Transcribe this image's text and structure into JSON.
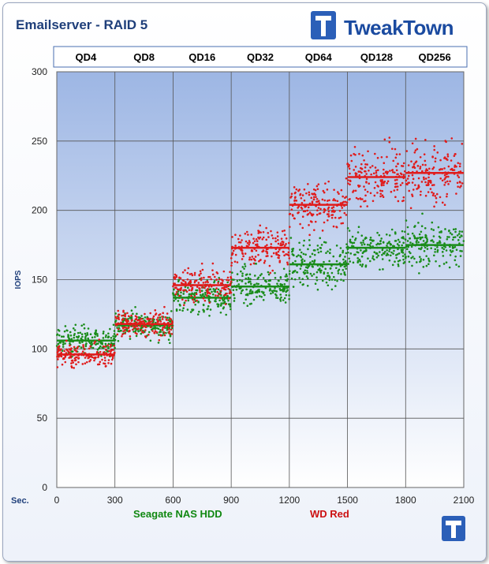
{
  "chart_data": {
    "type": "scatter",
    "title": "Emailserver  - RAID 5",
    "ylabel": "IOPS",
    "xlabel": "Sec.",
    "xlim": [
      0,
      2100
    ],
    "ylim": [
      0,
      300
    ],
    "xticks": [
      0,
      300,
      600,
      900,
      1200,
      1500,
      1800,
      2100
    ],
    "yticks": [
      0,
      50,
      100,
      150,
      200,
      250,
      300
    ],
    "grid": true,
    "legend_position": "bottom",
    "segments": [
      {
        "label": "QD4",
        "x_start": 0,
        "x_end": 300
      },
      {
        "label": "QD8",
        "x_start": 300,
        "x_end": 600
      },
      {
        "label": "QD16",
        "x_start": 600,
        "x_end": 900
      },
      {
        "label": "QD32",
        "x_start": 900,
        "x_end": 1200
      },
      {
        "label": "QD64",
        "x_start": 1200,
        "x_end": 1500
      },
      {
        "label": "QD128",
        "x_start": 1500,
        "x_end": 1800
      },
      {
        "label": "QD256",
        "x_start": 1800,
        "x_end": 2100
      }
    ],
    "series": [
      {
        "name": "Seagate NAS HDD",
        "color": "#1a8c1a",
        "averages": [
          106,
          117,
          137,
          145,
          161,
          173,
          175
        ],
        "spread": [
          9,
          9,
          11,
          12,
          14,
          14,
          14
        ]
      },
      {
        "name": "WD Red",
        "color": "#e01b1b",
        "averages": [
          96,
          118,
          146,
          173,
          204,
          224,
          227
        ],
        "spread": [
          7,
          9,
          10,
          13,
          15,
          18,
          20
        ]
      }
    ]
  },
  "branding": {
    "name": "TweakTown"
  }
}
